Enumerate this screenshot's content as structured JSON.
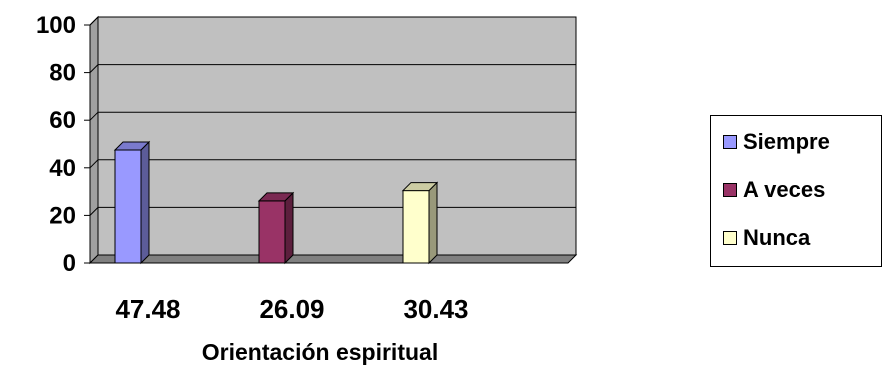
{
  "chart_data": {
    "type": "bar",
    "style": "3d-clustered-column",
    "xlabel": "Orientación espiritual",
    "ylim": [
      0,
      100
    ],
    "yticks": [
      0,
      20,
      40,
      60,
      80,
      100
    ],
    "grid": true,
    "plot_background": "#c0c0c0",
    "legend_position": "right",
    "categories": [
      "47.48",
      "26.09",
      "30.43"
    ],
    "series": [
      {
        "name": "Siempre",
        "color": "#9999ff",
        "values": [
          47.48,
          null,
          null
        ]
      },
      {
        "name": "A veces",
        "color": "#993366",
        "values": [
          null,
          26.09,
          null
        ]
      },
      {
        "name": "Nunca",
        "color": "#ffffcc",
        "values": [
          null,
          null,
          30.43
        ]
      }
    ]
  }
}
